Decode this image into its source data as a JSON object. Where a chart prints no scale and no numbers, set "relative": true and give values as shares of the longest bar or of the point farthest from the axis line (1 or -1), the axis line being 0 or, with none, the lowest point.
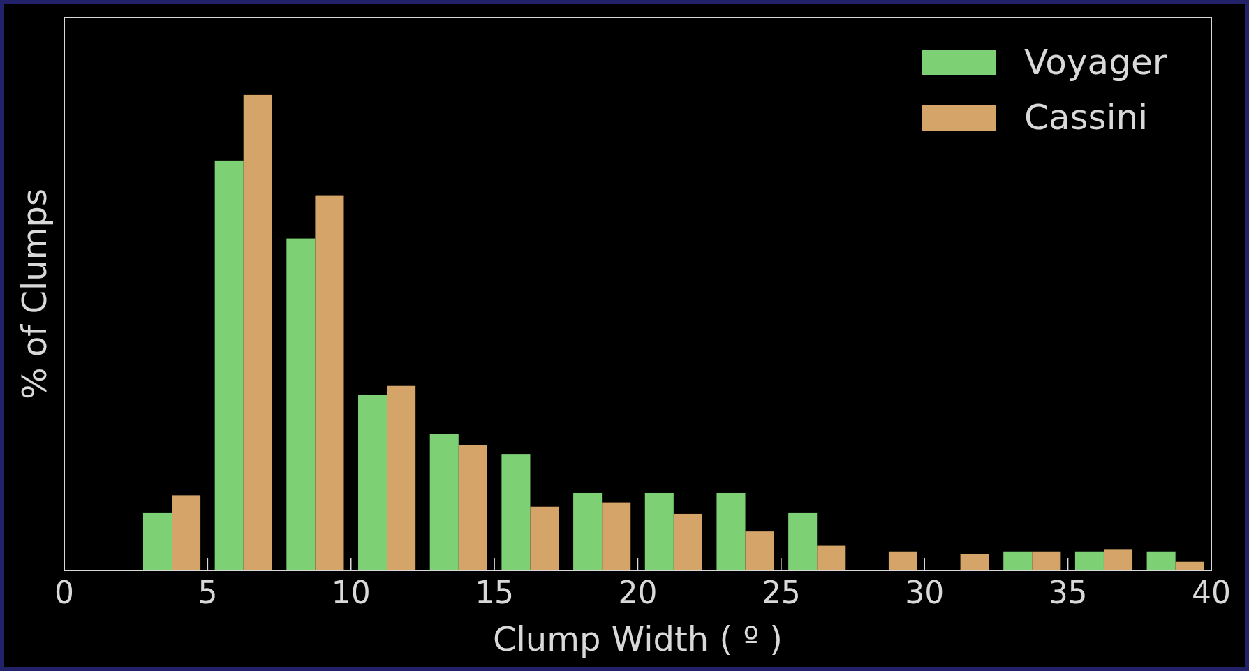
{
  "chart_data": {
    "type": "bar",
    "relative": true,
    "xlabel": "Clump Width ( º )",
    "ylabel": "% of Clumps",
    "series": [
      {
        "name": "Voyager",
        "color": "#7dd073",
        "x": [
          3.25,
          5.75,
          8.25,
          10.75,
          13.25,
          15.75,
          18.25,
          20.75,
          23.25,
          25.75,
          28.25,
          30.75,
          33.25,
          35.75,
          38.25
        ],
        "values": [
          0.122,
          0.862,
          0.698,
          0.369,
          0.287,
          0.245,
          0.163,
          0.163,
          0.163,
          0.122,
          null,
          null,
          0.04,
          0.04,
          0.04
        ]
      },
      {
        "name": "Cassini",
        "color": "#d4a469",
        "x": [
          4.25,
          6.75,
          9.25,
          11.75,
          14.25,
          16.75,
          19.25,
          21.75,
          24.25,
          26.75,
          29.25,
          31.75,
          34.25,
          36.75,
          39.25
        ],
        "values": [
          0.158,
          1,
          0.789,
          0.388,
          0.263,
          0.134,
          0.143,
          0.119,
          0.082,
          0.052,
          0.04,
          0.034,
          0.04,
          0.045,
          0.018
        ]
      }
    ],
    "xlim": [
      0,
      40
    ],
    "xticks": [
      0,
      5,
      10,
      15,
      20,
      25,
      30,
      35,
      40
    ],
    "legend": "top right",
    "grid": false
  }
}
